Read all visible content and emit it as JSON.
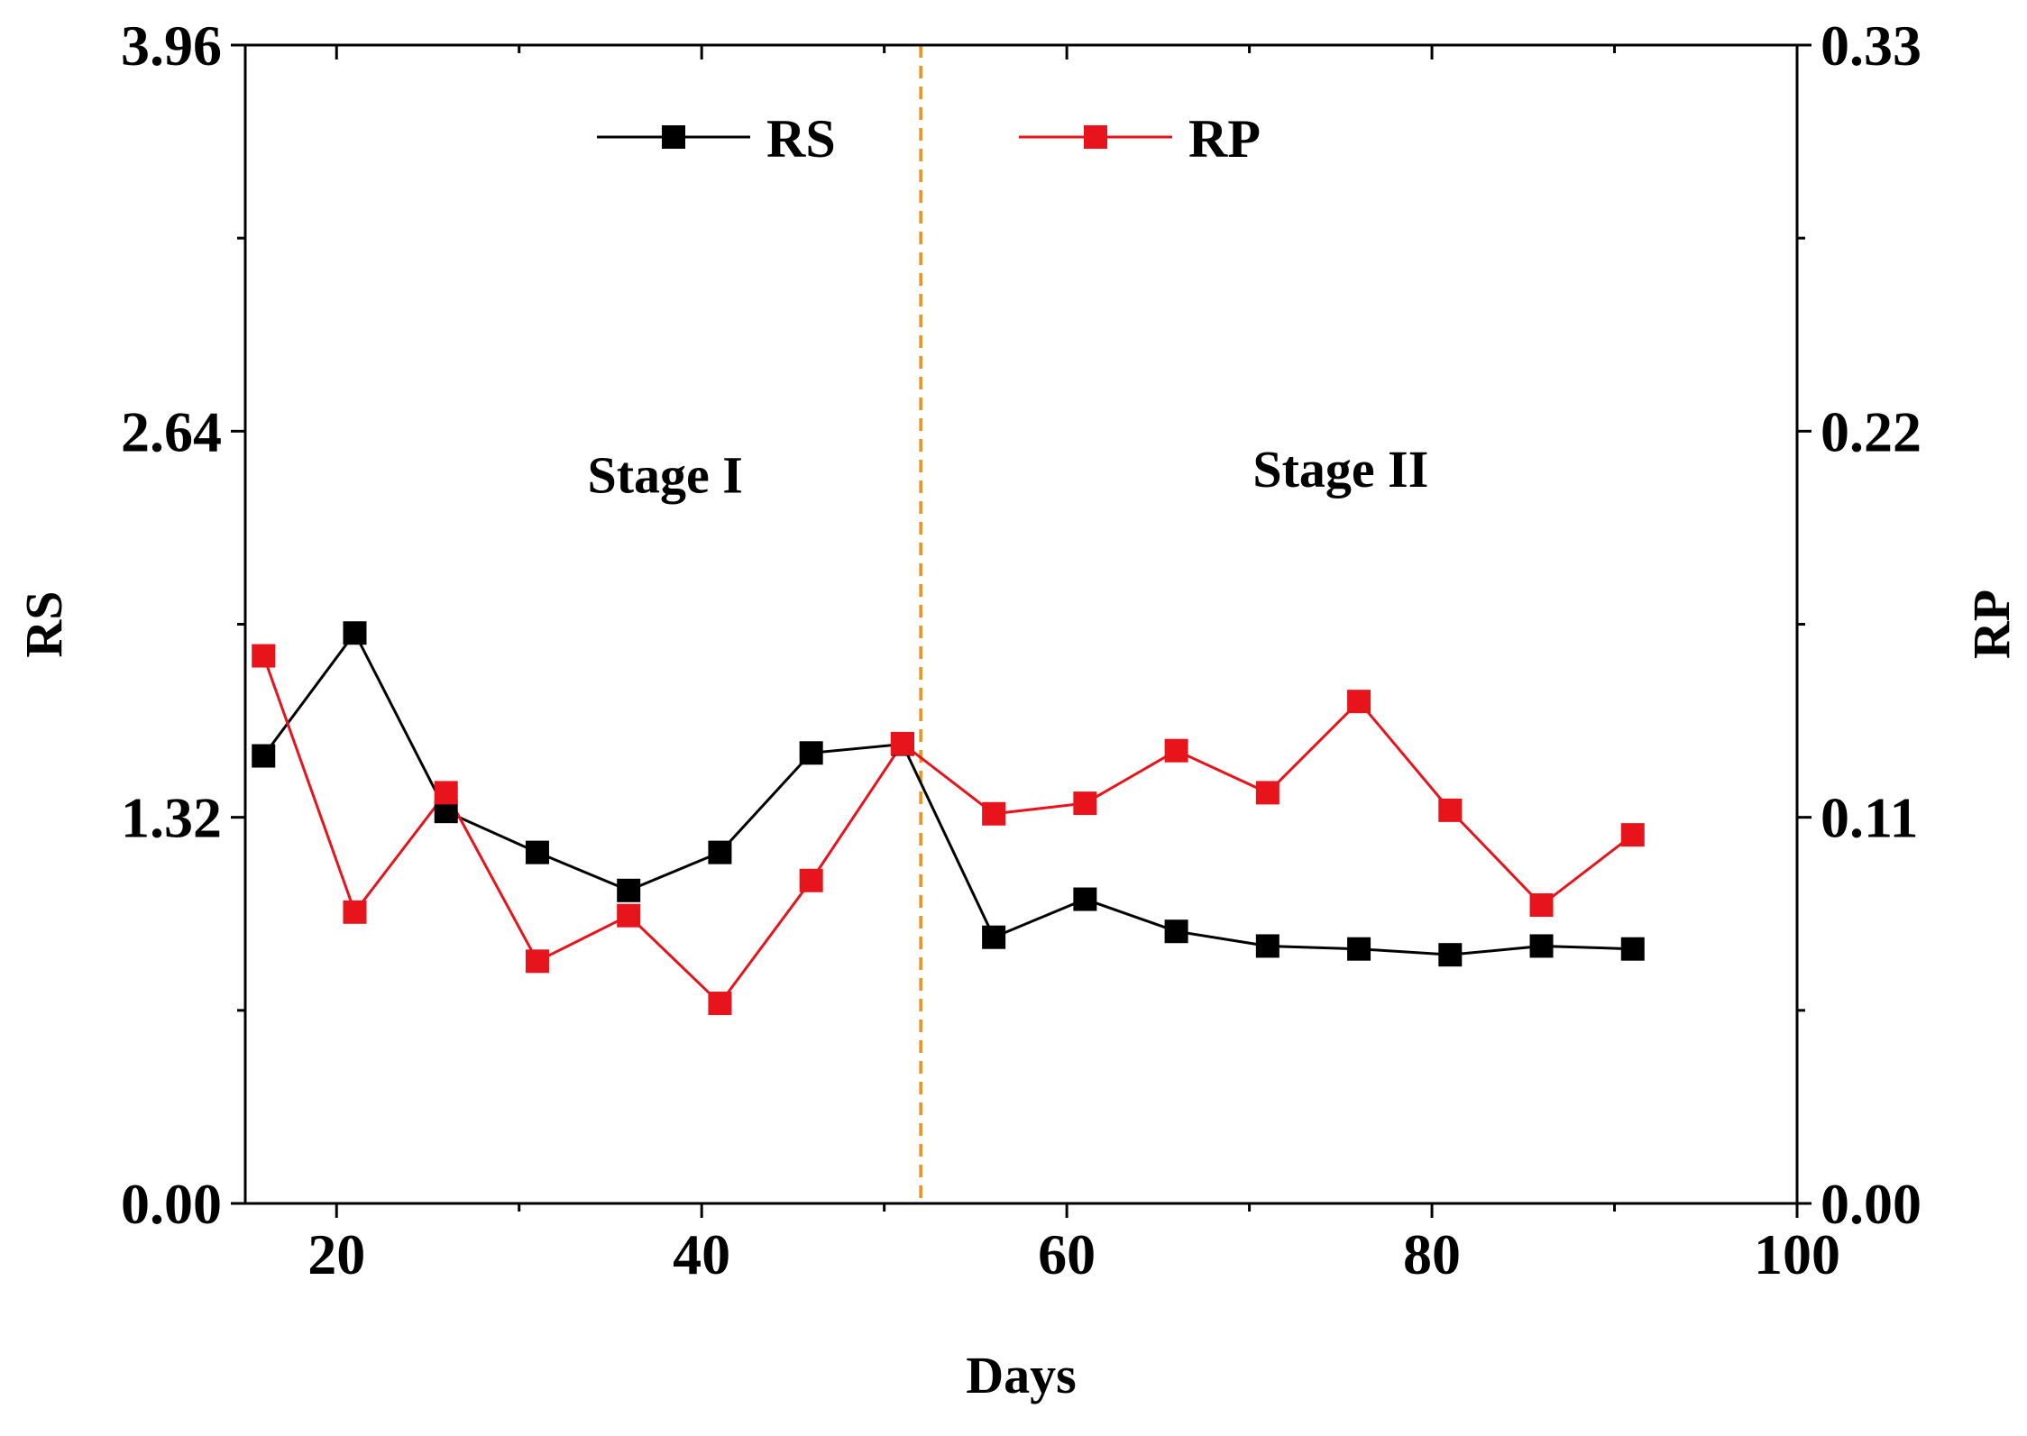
{
  "chart_data": {
    "type": "line",
    "title": "",
    "xlabel": "Days",
    "ylabel_left": "RS",
    "ylabel_right": "RP",
    "xlim": [
      15,
      100
    ],
    "xticks": [
      "20",
      "40",
      "60",
      "80",
      "100"
    ],
    "ylim_left": [
      0,
      3.96
    ],
    "yticks_left": [
      "0.00",
      "1.32",
      "2.64",
      "3.96"
    ],
    "ylim_right": [
      0,
      0.33
    ],
    "yticks_right": [
      "0.00",
      "0.11",
      "0.22",
      "0.33"
    ],
    "x": [
      16,
      21,
      26,
      31,
      36,
      41,
      46,
      51,
      56,
      61,
      66,
      71,
      76,
      81,
      86,
      91
    ],
    "series": [
      {
        "name": "RS",
        "axis": "left",
        "color": "#000000",
        "values": [
          1.53,
          1.95,
          1.34,
          1.2,
          1.07,
          1.2,
          1.54,
          1.57,
          0.91,
          1.04,
          0.93,
          0.88,
          0.87,
          0.85,
          0.88,
          0.87
        ]
      },
      {
        "name": "RP",
        "axis": "right",
        "color": "#e8141b",
        "values": [
          0.156,
          0.083,
          0.117,
          0.069,
          0.082,
          0.057,
          0.092,
          0.131,
          0.111,
          0.114,
          0.129,
          0.117,
          0.143,
          0.112,
          0.085,
          0.105
        ]
      }
    ],
    "divider": {
      "x": 52,
      "color": "#f0901e",
      "style": "dashed"
    },
    "annotations": [
      {
        "text": "Stage I",
        "x": 38,
        "y_left": 2.43
      },
      {
        "text": "Stage II",
        "x": 75,
        "y_left": 2.45
      }
    ],
    "legend": "top-center"
  }
}
